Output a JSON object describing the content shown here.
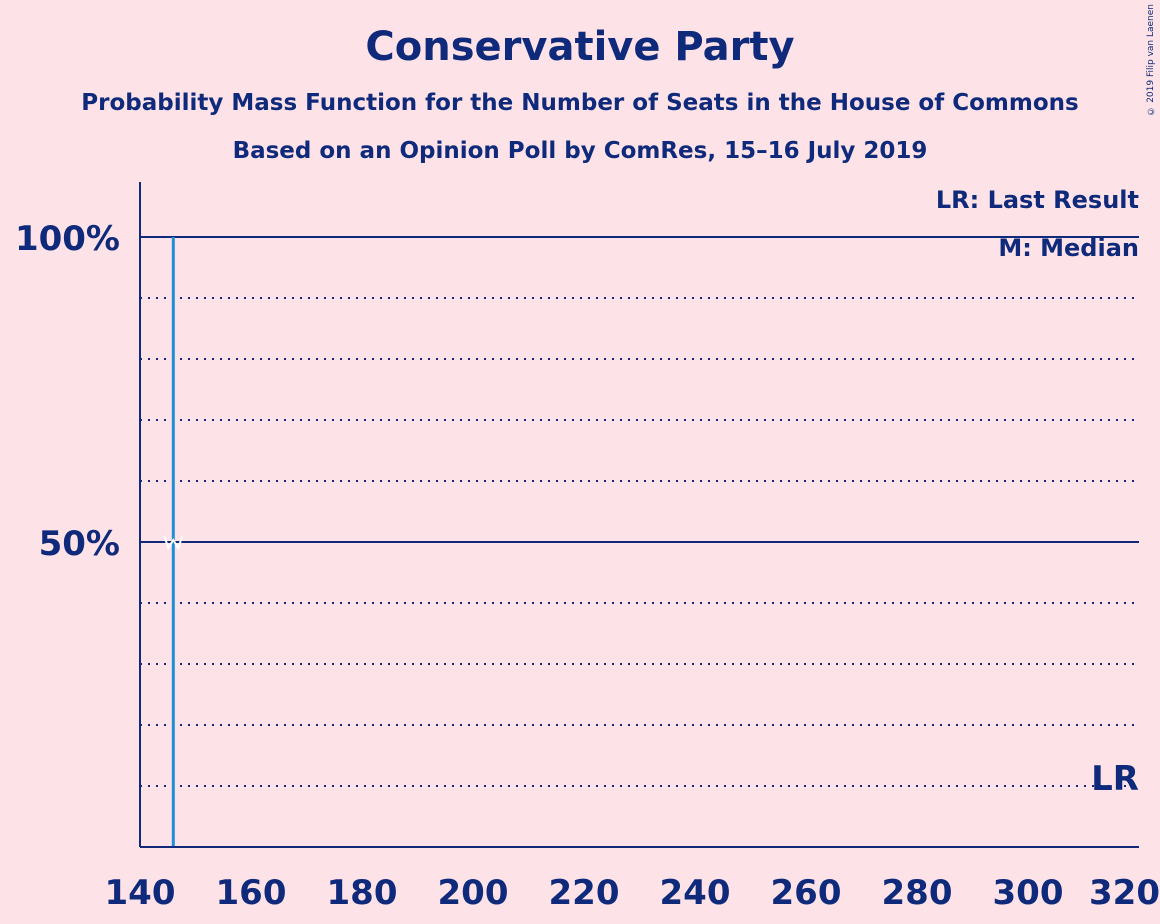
{
  "title": "Conservative Party",
  "subtitle1": "Probability Mass Function for the Number of Seats in the House of Commons",
  "subtitle2": "Based on an Opinion Poll by ComRes, 15–16 July 2019",
  "copyright": "© 2019 Filip van Laenen",
  "colors": {
    "background": "#fde3e8",
    "axis": "#0f2a7a",
    "bar": "#1f8fd6",
    "median_mark": "#ffffff"
  },
  "chart_data": {
    "type": "bar",
    "xlim": [
      140,
      320
    ],
    "ylim": [
      0,
      1.1
    ],
    "x_ticks": [
      140,
      160,
      180,
      200,
      220,
      240,
      260,
      280,
      300,
      320
    ],
    "y_ticks": [
      {
        "value": 0.5,
        "label": "50%"
      },
      {
        "value": 1.0,
        "label": "100%"
      }
    ],
    "grid_dotted": [
      0.1,
      0.2,
      0.3,
      0.4,
      0.6,
      0.7,
      0.8,
      0.9
    ],
    "grid_solid": [
      0.5,
      1.0
    ],
    "bars": [
      {
        "x": 146,
        "value": 1.0
      }
    ],
    "median": {
      "x": 146,
      "value": 0.5
    },
    "last_result": {
      "x": 317,
      "label": "LR"
    },
    "legend": [
      "LR: Last Result",
      "M: Median"
    ],
    "legend_placement": "top-right"
  }
}
